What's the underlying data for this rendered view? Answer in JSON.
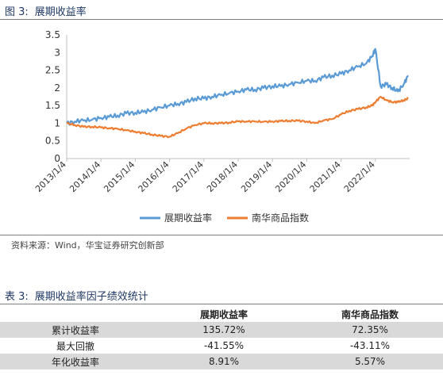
{
  "figure": {
    "caption_num": "图 3:",
    "caption_title": "展期收益率",
    "source": "资料来源：Wind，华宝证券研究创新部"
  },
  "colors": {
    "series1": "#5b9bd5",
    "series2": "#ed7d31",
    "caption": "#1f3864",
    "shade": "#d9d9d9"
  },
  "chart_data": {
    "type": "line",
    "title": "",
    "xlabel": "",
    "ylabel": "",
    "ylim": [
      0,
      3.5
    ],
    "yticks": [
      "0",
      "0.5",
      "1",
      "1.5",
      "2",
      "2.5",
      "3",
      "3.5"
    ],
    "xticks": [
      "2013/1/4",
      "2014/1/4",
      "2015/1/4",
      "2016/1/4",
      "2017/1/4",
      "2018/1/4",
      "2019/1/4",
      "2020/1/4",
      "2021/1/4",
      "2022/1/4"
    ],
    "x_range": [
      "2013/1/4",
      "2023/1/4"
    ],
    "legend_position": "bottom",
    "series": [
      {
        "name": "展期收益率",
        "color": "#5b9bd5",
        "x": [
          "2013/1/4",
          "2013/4/1",
          "2013/7/1",
          "2013/10/1",
          "2014/1/4",
          "2014/4/1",
          "2014/7/1",
          "2014/10/1",
          "2015/1/4",
          "2015/4/1",
          "2015/7/1",
          "2015/10/1",
          "2016/1/4",
          "2016/4/1",
          "2016/7/1",
          "2016/10/1",
          "2017/1/4",
          "2017/4/1",
          "2017/7/1",
          "2017/10/1",
          "2018/1/4",
          "2018/4/1",
          "2018/7/1",
          "2018/10/1",
          "2019/1/4",
          "2019/4/1",
          "2019/7/1",
          "2019/10/1",
          "2020/1/4",
          "2020/4/1",
          "2020/7/1",
          "2020/10/1",
          "2021/1/4",
          "2021/4/1",
          "2021/7/1",
          "2021/10/1",
          "2021/12/1",
          "2022/1/4",
          "2022/3/1",
          "2022/5/1",
          "2022/7/1",
          "2022/9/1",
          "2022/11/1",
          "2022/12/20"
        ],
        "y": [
          1.0,
          1.05,
          1.08,
          1.1,
          1.15,
          1.18,
          1.22,
          1.28,
          1.3,
          1.32,
          1.38,
          1.45,
          1.5,
          1.55,
          1.6,
          1.7,
          1.7,
          1.75,
          1.8,
          1.85,
          1.9,
          1.95,
          1.95,
          2.0,
          2.05,
          2.05,
          2.1,
          2.15,
          2.2,
          2.2,
          2.3,
          2.35,
          2.4,
          2.5,
          2.6,
          2.7,
          2.9,
          3.1,
          2.05,
          2.1,
          2.0,
          1.9,
          2.1,
          2.35
        ]
      },
      {
        "name": "南华商品指数",
        "color": "#ed7d31",
        "x": [
          "2013/1/4",
          "2013/4/1",
          "2013/7/1",
          "2013/10/1",
          "2014/1/4",
          "2014/4/1",
          "2014/7/1",
          "2014/10/1",
          "2015/1/4",
          "2015/4/1",
          "2015/7/1",
          "2015/10/1",
          "2016/1/4",
          "2016/4/1",
          "2016/7/1",
          "2016/10/1",
          "2017/1/4",
          "2017/4/1",
          "2017/7/1",
          "2017/10/1",
          "2018/1/4",
          "2018/4/1",
          "2018/7/1",
          "2018/10/1",
          "2019/1/4",
          "2019/4/1",
          "2019/7/1",
          "2019/10/1",
          "2020/1/4",
          "2020/4/1",
          "2020/7/1",
          "2020/10/1",
          "2021/1/4",
          "2021/4/1",
          "2021/7/1",
          "2021/10/1",
          "2021/12/1",
          "2022/1/4",
          "2022/3/1",
          "2022/5/1",
          "2022/7/1",
          "2022/9/1",
          "2022/11/1",
          "2022/12/20"
        ],
        "y": [
          1.0,
          0.95,
          0.9,
          0.9,
          0.88,
          0.86,
          0.84,
          0.8,
          0.76,
          0.72,
          0.68,
          0.64,
          0.62,
          0.72,
          0.85,
          0.95,
          1.0,
          1.0,
          1.0,
          1.02,
          1.05,
          1.05,
          1.05,
          1.04,
          1.05,
          1.06,
          1.07,
          1.07,
          1.05,
          1.0,
          1.08,
          1.12,
          1.25,
          1.35,
          1.4,
          1.45,
          1.5,
          1.6,
          1.75,
          1.65,
          1.6,
          1.6,
          1.65,
          1.7
        ]
      }
    ]
  },
  "table": {
    "caption_num": "表 3:",
    "caption_title": "展期收益率因子绩效统计",
    "headers": [
      "",
      "展期收益率",
      "南华商品指数"
    ],
    "rows": [
      {
        "label": "累计收益率",
        "v1": "135.72%",
        "v2": "72.35%"
      },
      {
        "label": "最大回撤",
        "v1": "-41.55%",
        "v2": "-43.11%"
      },
      {
        "label": "年化收益率",
        "v1": "8.91%",
        "v2": "5.57%"
      }
    ]
  }
}
